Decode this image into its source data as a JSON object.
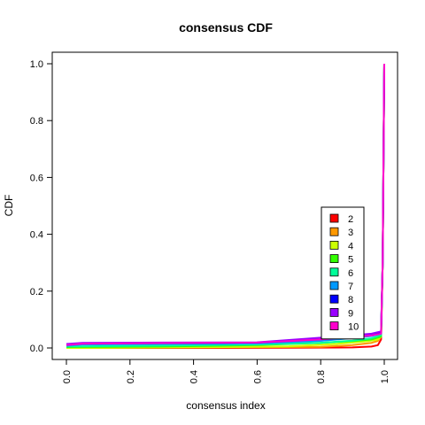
{
  "chart_data": {
    "type": "line",
    "title": "consensus CDF",
    "xlabel": "consensus index",
    "ylabel": "CDF",
    "xlim": [
      0,
      1
    ],
    "ylim": [
      0,
      1
    ],
    "x_ticks": [
      "0.0",
      "0.2",
      "0.4",
      "0.6",
      "0.8",
      "1.0"
    ],
    "y_ticks": [
      "0.0",
      "0.2",
      "0.4",
      "0.6",
      "0.8",
      "1.0"
    ],
    "legend_position": "center-right",
    "grid": false,
    "series": [
      {
        "name": "2",
        "color": "#ff0000",
        "x": [
          0,
          0.5,
          0.9,
          0.96,
          0.98,
          0.99,
          0.995,
          1.0
        ],
        "y": [
          0.0,
          0.0,
          0.002,
          0.005,
          0.01,
          0.03,
          0.3,
          1.0
        ]
      },
      {
        "name": "3",
        "color": "#ff9900",
        "x": [
          0,
          0.5,
          0.8,
          0.9,
          0.96,
          0.98,
          0.99,
          0.995,
          1.0
        ],
        "y": [
          0.0,
          0.002,
          0.004,
          0.01,
          0.018,
          0.025,
          0.04,
          0.3,
          1.0
        ]
      },
      {
        "name": "4",
        "color": "#ccff00",
        "x": [
          0,
          0.5,
          0.7,
          0.85,
          0.95,
          0.98,
          0.99,
          0.995,
          1.0
        ],
        "y": [
          0.0,
          0.003,
          0.006,
          0.014,
          0.024,
          0.03,
          0.04,
          0.3,
          1.0
        ]
      },
      {
        "name": "5",
        "color": "#33ff00",
        "x": [
          0,
          0.3,
          0.6,
          0.8,
          0.9,
          0.96,
          0.99,
          0.995,
          1.0
        ],
        "y": [
          0.003,
          0.005,
          0.01,
          0.018,
          0.024,
          0.03,
          0.04,
          0.3,
          1.0
        ]
      },
      {
        "name": "6",
        "color": "#00ff99",
        "x": [
          0,
          0.3,
          0.6,
          0.8,
          0.9,
          0.96,
          0.99,
          0.995,
          1.0
        ],
        "y": [
          0.005,
          0.008,
          0.012,
          0.018,
          0.026,
          0.034,
          0.045,
          0.3,
          1.0
        ]
      },
      {
        "name": "7",
        "color": "#0099ff",
        "x": [
          0,
          0.05,
          0.3,
          0.6,
          0.8,
          0.9,
          0.96,
          0.99,
          0.995,
          1.0
        ],
        "y": [
          0.008,
          0.012,
          0.014,
          0.016,
          0.025,
          0.035,
          0.042,
          0.05,
          0.3,
          1.0
        ]
      },
      {
        "name": "8",
        "color": "#0000ff",
        "x": [
          0,
          0.05,
          0.3,
          0.6,
          0.7,
          0.8,
          0.9,
          0.96,
          0.99,
          0.995,
          1.0
        ],
        "y": [
          0.012,
          0.016,
          0.017,
          0.019,
          0.026,
          0.032,
          0.04,
          0.046,
          0.055,
          0.3,
          1.0
        ]
      },
      {
        "name": "9",
        "color": "#9900ff",
        "x": [
          0,
          0.05,
          0.3,
          0.6,
          0.7,
          0.8,
          0.9,
          0.96,
          0.99,
          0.995,
          1.0
        ],
        "y": [
          0.014,
          0.018,
          0.019,
          0.02,
          0.028,
          0.036,
          0.045,
          0.05,
          0.058,
          0.3,
          1.0
        ]
      },
      {
        "name": "10",
        "color": "#ff00cc",
        "x": [
          0,
          0.05,
          0.3,
          0.6,
          0.7,
          0.8,
          0.9,
          0.96,
          0.99,
          0.995,
          1.0
        ],
        "y": [
          0.01,
          0.015,
          0.017,
          0.019,
          0.024,
          0.03,
          0.038,
          0.044,
          0.05,
          0.3,
          1.0
        ]
      }
    ]
  }
}
